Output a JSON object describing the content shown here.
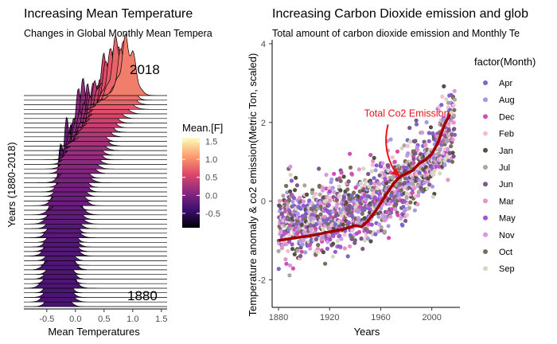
{
  "chart_data": [
    {
      "type": "ridgeline",
      "title": "Increasing Mean Temperature",
      "subtitle": "Changes in Global Monthly Mean Tempera",
      "xlabel": "Mean Temperatures",
      "ylabel": "Years (1880-2018)",
      "xlim": [
        -0.9,
        1.6
      ],
      "x_ticks": [
        -0.5,
        0.0,
        0.5,
        1.0,
        1.5
      ],
      "x_tick_labels": [
        "-0.5",
        "0.0",
        "0.5",
        "1.0",
        "1.5"
      ],
      "year_range": [
        1880,
        2018
      ],
      "annotations": [
        "2018",
        "1880"
      ],
      "colorbar": {
        "title": "Mean.[F]",
        "range": [
          -0.9,
          1.6
        ],
        "ticks": [
          1.5,
          1.0,
          0.5,
          0.0,
          -0.5
        ],
        "tick_labels": [
          "1.5",
          "1.0",
          "0.5",
          "0.0",
          "-0.5"
        ],
        "palette": [
          "#000004",
          "#3b0f70",
          "#8c2981",
          "#de4968",
          "#fe9f6d",
          "#fcfdbf"
        ]
      },
      "grid": false
    },
    {
      "type": "scatter",
      "title": "Increasing Carbon Dioxide emission and glob",
      "subtitle": "Total amount of carbon dioxide emission and Monthly Te",
      "xlabel": "Years",
      "ylabel": "Temperature anomaly & co2 emission(Metric Ton, scaled)",
      "xlim": [
        1875,
        2022
      ],
      "ylim": [
        -2.7,
        4.1
      ],
      "x_ticks": [
        1880,
        1920,
        1960,
        2000
      ],
      "x_tick_labels": [
        "1880",
        "1920",
        "1960",
        "2000"
      ],
      "y_ticks": [
        -2,
        0,
        2,
        4
      ],
      "y_tick_labels": [
        "-2",
        "0",
        "2",
        "4"
      ],
      "legend": {
        "title": "factor(Month)",
        "placement": "right",
        "items": [
          {
            "label": "Apr",
            "color": "#7a68c9"
          },
          {
            "label": "Aug",
            "color": "#a699e3"
          },
          {
            "label": "Dec",
            "color": "#d24fb2"
          },
          {
            "label": "Feb",
            "color": "#f5bcd8"
          },
          {
            "label": "Jan",
            "color": "#555041"
          },
          {
            "label": "Jul",
            "color": "#a8a89c"
          },
          {
            "label": "Jun",
            "color": "#7a5a86"
          },
          {
            "label": "Mar",
            "color": "#e494c6"
          },
          {
            "label": "May",
            "color": "#9a57cf"
          },
          {
            "label": "Nov",
            "color": "#d597e6"
          },
          {
            "label": "Oct",
            "color": "#7a6d5a"
          },
          {
            "label": "Sep",
            "color": "#d8d6c3"
          }
        ]
      },
      "co2_line": {
        "color": "#a00000",
        "x": [
          1880,
          1890,
          1900,
          1910,
          1920,
          1930,
          1940,
          1945,
          1950,
          1955,
          1960,
          1965,
          1970,
          1975,
          1980,
          1985,
          1990,
          1995,
          2000,
          2005,
          2010,
          2014
        ],
        "y": [
          -1.0,
          -0.95,
          -0.9,
          -0.85,
          -0.78,
          -0.72,
          -0.62,
          -0.65,
          -0.5,
          -0.3,
          -0.05,
          0.2,
          0.45,
          0.62,
          0.7,
          0.78,
          0.95,
          1.05,
          1.2,
          1.5,
          1.95,
          2.2
        ]
      },
      "annotation": {
        "text": "Total Co2 Emission",
        "color": "#e8141c",
        "x": 1947,
        "y": 2.15,
        "arrow_to": [
          1974,
          0.65
        ]
      },
      "grid": false
    }
  ]
}
